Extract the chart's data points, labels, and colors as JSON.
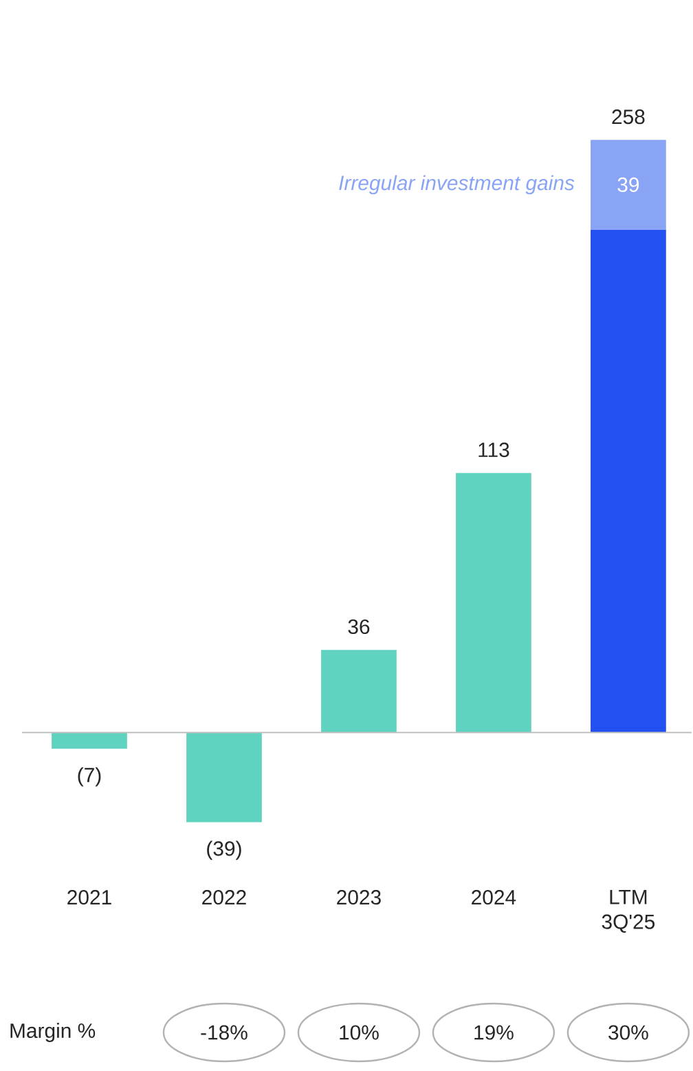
{
  "chart_data": {
    "type": "bar",
    "stacked": true,
    "categories": [
      "2021",
      "2022",
      "2023",
      "2024",
      "LTM 3Q'25"
    ],
    "series": [
      {
        "colors": [
          "#5fd3bf",
          "#5fd3bf",
          "#5fd3bf",
          "#5fd3bf",
          "#2350f0"
        ],
        "values": [
          -7,
          -39,
          36,
          113,
          219
        ],
        "value_labels": [
          "(7)",
          "(39)",
          "36",
          "113",
          null
        ]
      },
      {
        "color": "#8aa4f5",
        "values": [
          null,
          null,
          null,
          null,
          39
        ],
        "value_labels": [
          null,
          null,
          null,
          null,
          "39"
        ]
      }
    ],
    "totals": [
      null,
      null,
      null,
      null,
      "258"
    ],
    "annotations": [
      "Irregular investment gains",
      "Margin %",
      "-18%",
      "10%",
      "19%",
      "30%"
    ]
  }
}
